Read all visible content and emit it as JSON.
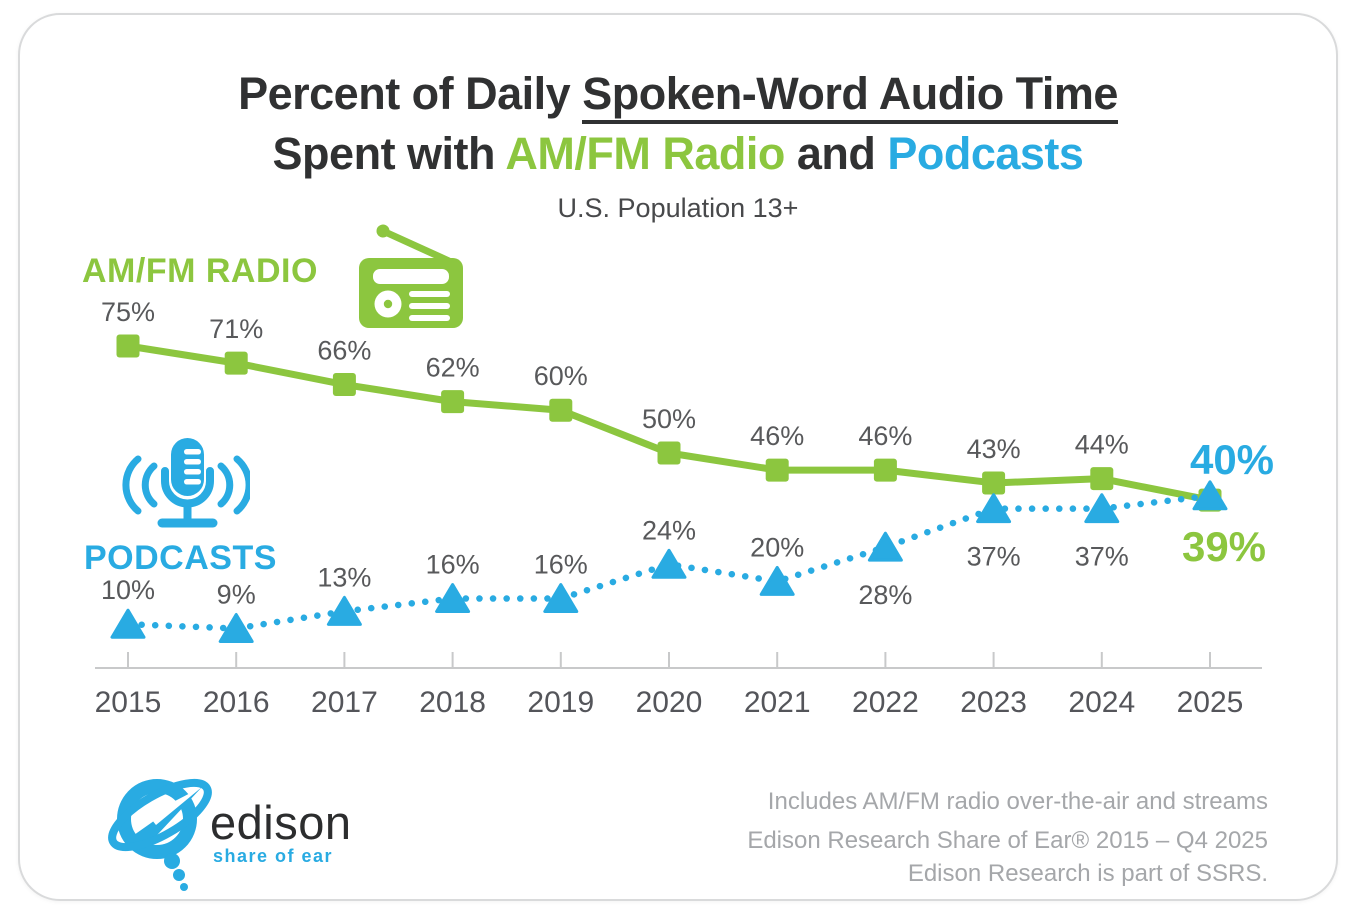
{
  "title": {
    "line1_prefix": "Percent of Daily ",
    "line1_underlined": "Spoken-Word Audio Time",
    "line2_prefix": "Spent with ",
    "line2_radio": "AM/FM Radio",
    "line2_and": " and ",
    "line2_podcasts": "Podcasts",
    "subtitle": "U.S. Population 13+"
  },
  "series_labels": {
    "radio": "AM/FM RADIO",
    "podcasts": "PODCASTS"
  },
  "colors": {
    "radio_green": "#8cc63f",
    "podcast_blue": "#29abe2",
    "label_gray": "#58595b",
    "year_gray": "#54555a",
    "axis_gray": "#c8c9ca",
    "footer_gray": "#a5a7aa",
    "title_black": "#303132"
  },
  "chart_data": {
    "type": "line",
    "title": "Percent of Daily Spoken-Word Audio Time Spent with AM/FM Radio and Podcasts",
    "subtitle": "U.S. Population 13+",
    "x": [
      2015,
      2016,
      2017,
      2018,
      2019,
      2020,
      2021,
      2022,
      2023,
      2024,
      2025
    ],
    "series": [
      {
        "name": "AM/FM Radio",
        "color": "#8cc63f",
        "marker": "square",
        "line_style": "solid",
        "values": [
          75,
          71,
          66,
          62,
          60,
          50,
          46,
          46,
          43,
          44,
          39
        ]
      },
      {
        "name": "Podcasts",
        "color": "#29abe2",
        "marker": "triangle",
        "line_style": "dotted",
        "values": [
          10,
          9,
          13,
          16,
          16,
          24,
          20,
          28,
          37,
          37,
          40
        ]
      }
    ],
    "unit": "%",
    "ylim": [
      0,
      80
    ],
    "grid": false,
    "data_labels": true,
    "legend_position": "left-inline",
    "podcast_labels_below_years": [
      2022,
      2023,
      2024
    ],
    "final_year_emphasized": true
  },
  "footer": {
    "logo_text": "edison",
    "logo_tagline": "share of ear",
    "note1": "Includes AM/FM radio over-the-air and streams",
    "note2": "Edison Research Share of Ear® 2015 – Q4 2025",
    "note3": "Edison Research is part of SSRS."
  }
}
